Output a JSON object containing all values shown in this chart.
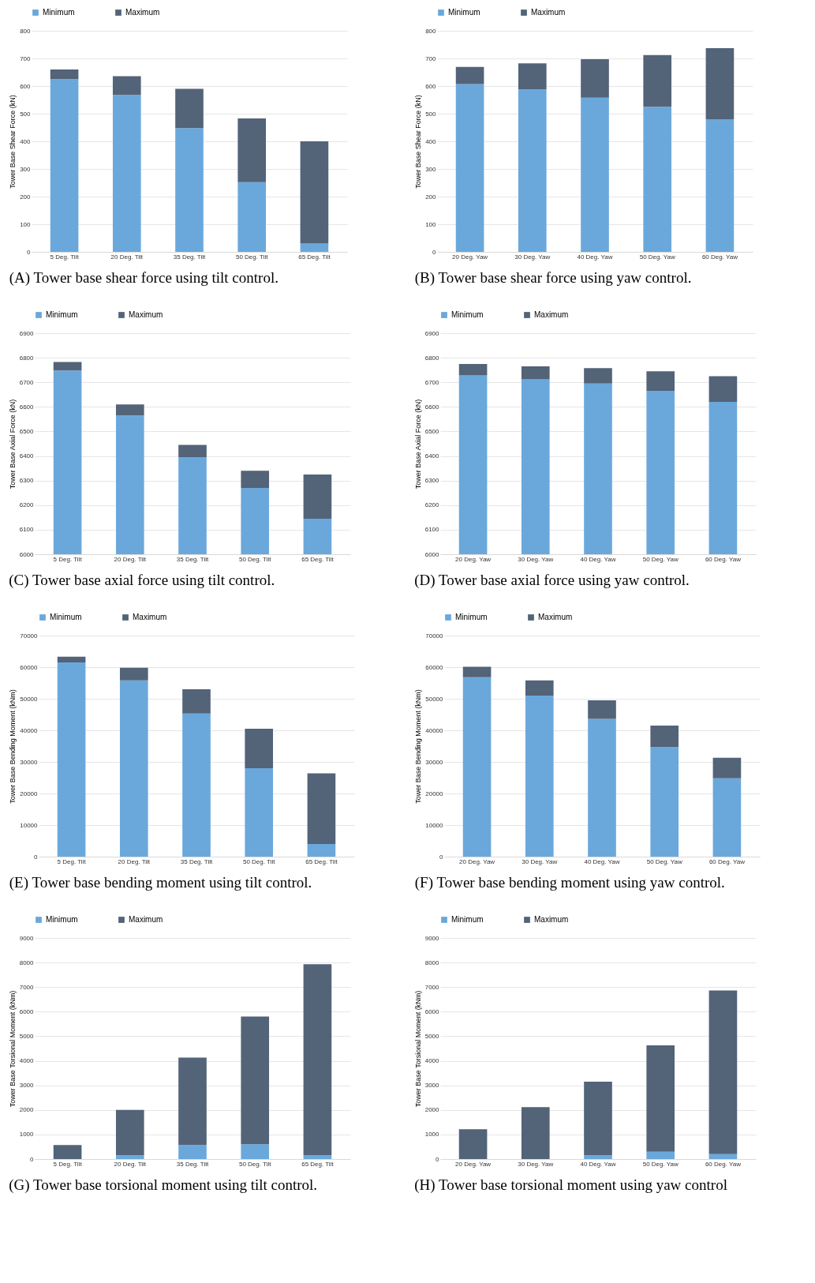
{
  "chart_data": [
    {
      "type": "bar",
      "title": "(A) Tower base shear force using tilt control.",
      "ylabel": "Tower Base Shear Force (kN)",
      "categories": [
        "5 Deg. Tilt",
        "20 Deg. Tilt",
        "35 Deg. Tilt",
        "50 Deg. Tilt",
        "65 Deg. Tilt"
      ],
      "stacked": true,
      "grid": "y",
      "legend": "top",
      "ylim": [
        0,
        800
      ],
      "yticks": [
        0,
        100,
        200,
        300,
        400,
        500,
        600,
        700,
        800
      ],
      "series": [
        {
          "name": "Minimum",
          "color": "#6aa8dc",
          "values": [
            625,
            568,
            448,
            252,
            30
          ]
        },
        {
          "name": "Maximum",
          "color": "#536378",
          "values": [
            35,
            68,
            142,
            231,
            370
          ]
        }
      ]
    },
    {
      "type": "bar",
      "title": "(B) Tower base shear force using yaw control.",
      "ylabel": "Tower Base Shear Force (kN)",
      "categories": [
        "20 Deg. Yaw",
        "30 Deg. Yaw",
        "40 Deg. Yaw",
        "50 Deg. Yaw",
        "60 Deg. Yaw"
      ],
      "stacked": true,
      "grid": "y",
      "legend": "top",
      "ylim": [
        0,
        800
      ],
      "yticks": [
        0,
        100,
        200,
        300,
        400,
        500,
        600,
        700,
        800
      ],
      "series": [
        {
          "name": "Minimum",
          "color": "#6aa8dc",
          "values": [
            607,
            588,
            558,
            525,
            480
          ]
        },
        {
          "name": "Maximum",
          "color": "#536378",
          "values": [
            62,
            94,
            139,
            187,
            257
          ]
        }
      ]
    },
    {
      "type": "bar",
      "title": "(C) Tower base axial force using tilt control.",
      "ylabel": "Tower Base Axial Force (kN)",
      "categories": [
        "5 Deg. Tilt",
        "20 Deg. Tilt",
        "35 Deg. Tilt",
        "50 Deg. Tilt",
        "65 Deg. Tilt"
      ],
      "stacked": true,
      "grid": "y",
      "legend": "top",
      "ylim": [
        6000,
        6900
      ],
      "yticks": [
        6000,
        6100,
        6200,
        6300,
        6400,
        6500,
        6600,
        6700,
        6800,
        6900
      ],
      "series": [
        {
          "name": "Minimum",
          "color": "#6aa8dc",
          "values": [
            6748,
            6565,
            6395,
            6270,
            6145
          ]
        },
        {
          "name": "Maximum",
          "color": "#536378",
          "base": [
            6748,
            6565,
            6395,
            6270,
            6145
          ],
          "values": [
            35,
            45,
            50,
            70,
            180
          ]
        }
      ]
    },
    {
      "type": "bar",
      "title": "(D) Tower base axial force using yaw control.",
      "ylabel": "Tower Base Axial Force (kN)",
      "categories": [
        "20 Deg. Yaw",
        "30 Deg. Yaw",
        "40 Deg. Yaw",
        "50 Deg. Yaw",
        "60 Deg. Yaw"
      ],
      "stacked": true,
      "grid": "y",
      "legend": "top",
      "ylim": [
        6000,
        6900
      ],
      "yticks": [
        6000,
        6100,
        6200,
        6300,
        6400,
        6500,
        6600,
        6700,
        6800,
        6900
      ],
      "series": [
        {
          "name": "Minimum",
          "color": "#6aa8dc",
          "values": [
            6728,
            6712,
            6695,
            6665,
            6620
          ]
        },
        {
          "name": "Maximum",
          "color": "#536378",
          "base": [
            6728,
            6712,
            6695,
            6665,
            6620
          ],
          "values": [
            47,
            53,
            63,
            80,
            105
          ]
        }
      ]
    },
    {
      "type": "bar",
      "title": "(E) Tower base bending moment using tilt control.",
      "ylabel": "Tower Base Bending Moment (kNm)",
      "categories": [
        "5 Deg. Tilt",
        "20 Deg. Tilt",
        "35 Deg. Tilt",
        "50 Deg. Tilt",
        "65 Deg. Tilt"
      ],
      "stacked": true,
      "grid": "y",
      "legend": "top",
      "ylim": [
        0,
        70000
      ],
      "yticks": [
        0,
        10000,
        20000,
        30000,
        40000,
        50000,
        60000,
        70000
      ],
      "series": [
        {
          "name": "Minimum",
          "color": "#6aa8dc",
          "values": [
            61500,
            55800,
            45300,
            28000,
            4000
          ]
        },
        {
          "name": "Maximum",
          "color": "#536378",
          "values": [
            1800,
            4000,
            7700,
            12500,
            22400
          ]
        }
      ]
    },
    {
      "type": "bar",
      "title": "(F) Tower base bending moment using yaw control.",
      "ylabel": "Tower Base Bending Moment (kNm)",
      "categories": [
        "20 Deg. Yaw",
        "30 Deg. Yaw",
        "40 Deg. Yaw",
        "50 Deg. Yaw",
        "60 Deg. Yaw"
      ],
      "stacked": true,
      "grid": "y",
      "legend": "top",
      "ylim": [
        0,
        70000
      ],
      "yticks": [
        0,
        10000,
        20000,
        30000,
        40000,
        50000,
        60000,
        70000
      ],
      "series": [
        {
          "name": "Minimum",
          "color": "#6aa8dc",
          "values": [
            56800,
            51000,
            43600,
            34700,
            24800
          ]
        },
        {
          "name": "Maximum",
          "color": "#536378",
          "values": [
            3300,
            4800,
            5900,
            6800,
            6500
          ]
        }
      ]
    },
    {
      "type": "bar",
      "title": "(G) Tower base torsional moment using tilt control.",
      "ylabel": "Tower Base Torsional Moment (kNm)",
      "categories": [
        "5 Deg. Tilt",
        "20 Deg. Tilt",
        "35 Deg. Tilt",
        "50 Deg. Tilt",
        "65 Deg. Tilt"
      ],
      "stacked": true,
      "grid": "y",
      "legend": "top",
      "ylim": [
        0,
        9000
      ],
      "yticks": [
        0,
        1000,
        2000,
        3000,
        4000,
        5000,
        6000,
        7000,
        8000,
        9000
      ],
      "series": [
        {
          "name": "Minimum",
          "color": "#6aa8dc",
          "values": [
            0,
            150,
            570,
            600,
            150
          ]
        },
        {
          "name": "Maximum",
          "color": "#536378",
          "values": [
            570,
            1850,
            3560,
            5200,
            7780
          ]
        }
      ]
    },
    {
      "type": "bar",
      "title": "(H) Tower base torsional moment using yaw control",
      "ylabel": "Tower Base Torsional Moment (kNm)",
      "categories": [
        "20 Deg. Yaw",
        "30 Deg. Yaw",
        "40 Deg. Yaw",
        "50 Deg. Yaw",
        "60 Deg. Yaw"
      ],
      "stacked": true,
      "grid": "y",
      "legend": "top",
      "ylim": [
        0,
        9000
      ],
      "yticks": [
        0,
        1000,
        2000,
        3000,
        4000,
        5000,
        6000,
        7000,
        8000,
        9000
      ],
      "series": [
        {
          "name": "Minimum",
          "color": "#6aa8dc",
          "values": [
            0,
            0,
            150,
            300,
            200
          ]
        },
        {
          "name": "Maximum",
          "color": "#536378",
          "values": [
            1210,
            2110,
            3000,
            4330,
            6660
          ]
        }
      ]
    }
  ]
}
